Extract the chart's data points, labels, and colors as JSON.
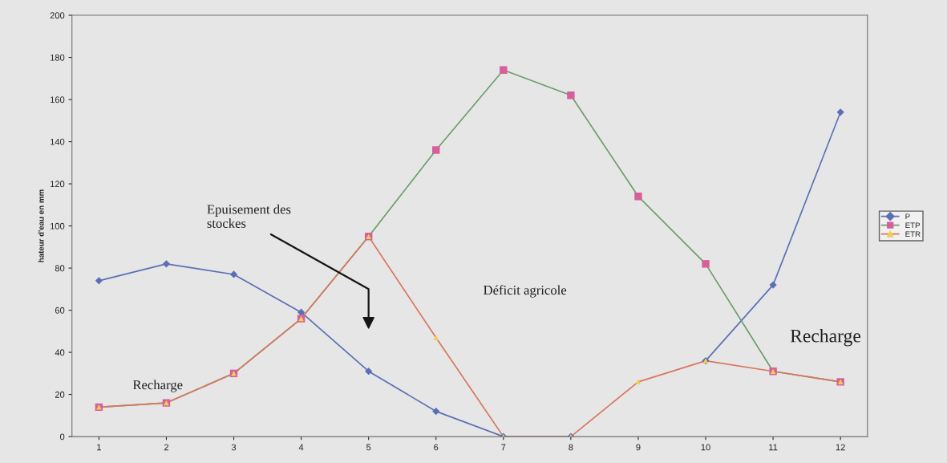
{
  "chart_data": {
    "type": "line",
    "ylabel": "hateur d'eau en mm",
    "categories": [
      "1",
      "2",
      "3",
      "4",
      "5",
      "6",
      "7",
      "8",
      "9",
      "10",
      "11",
      "12"
    ],
    "series": [
      {
        "name": "P",
        "color": "#5b6fb5",
        "colors": [
          "#5b6fb5",
          "#5b6fb5",
          "#5b6fb5",
          "#5b6fb5",
          "#5b6fb5",
          "#5b6fb5",
          "#5b6fb5",
          "#5b6fb5",
          "#5b6fb5",
          "#5b6fb5",
          "#5b6fb5",
          "#5b6fb5"
        ],
        "marker": "diamond",
        "values": [
          74,
          82,
          77,
          59,
          31,
          12,
          0,
          0,
          null,
          36,
          72,
          154
        ]
      },
      {
        "name": "ETP",
        "color": "#6a9e6a",
        "colors": [
          "#d6609a",
          "#d6609a",
          "#d6609a",
          "#d6609a",
          "#d6609a",
          "#d6609a",
          "#d6609a",
          "#d6609a",
          "#d6609a",
          "#d6609a",
          "#d6609a",
          "#d6609a"
        ],
        "marker": "square",
        "values": [
          14,
          16,
          30,
          56,
          95,
          136,
          174,
          162,
          114,
          82,
          31,
          26
        ]
      },
      {
        "name": "ETR",
        "color": "#d9765e",
        "colors": [
          "#f0d050",
          "#f0d050",
          "#f0d050",
          "#f0d050",
          "#f0d050",
          "#f0d050",
          "#f0d050",
          "#f0d050",
          "#f0d050",
          "#f0d050",
          "#f0d050",
          "#f0d050"
        ],
        "marker": "triangle",
        "values": [
          14,
          16,
          30,
          56,
          95,
          47,
          0,
          0,
          26,
          36,
          31,
          26
        ]
      }
    ],
    "ylim": [
      0,
      200
    ],
    "yticks": [
      0,
      20,
      40,
      60,
      80,
      100,
      120,
      140,
      160,
      180,
      200
    ],
    "annotations": [
      "Epuisement des\nstockes",
      "Déficit agricole",
      "Recharge",
      "Recharge"
    ],
    "legend": "right",
    "grid": false
  }
}
